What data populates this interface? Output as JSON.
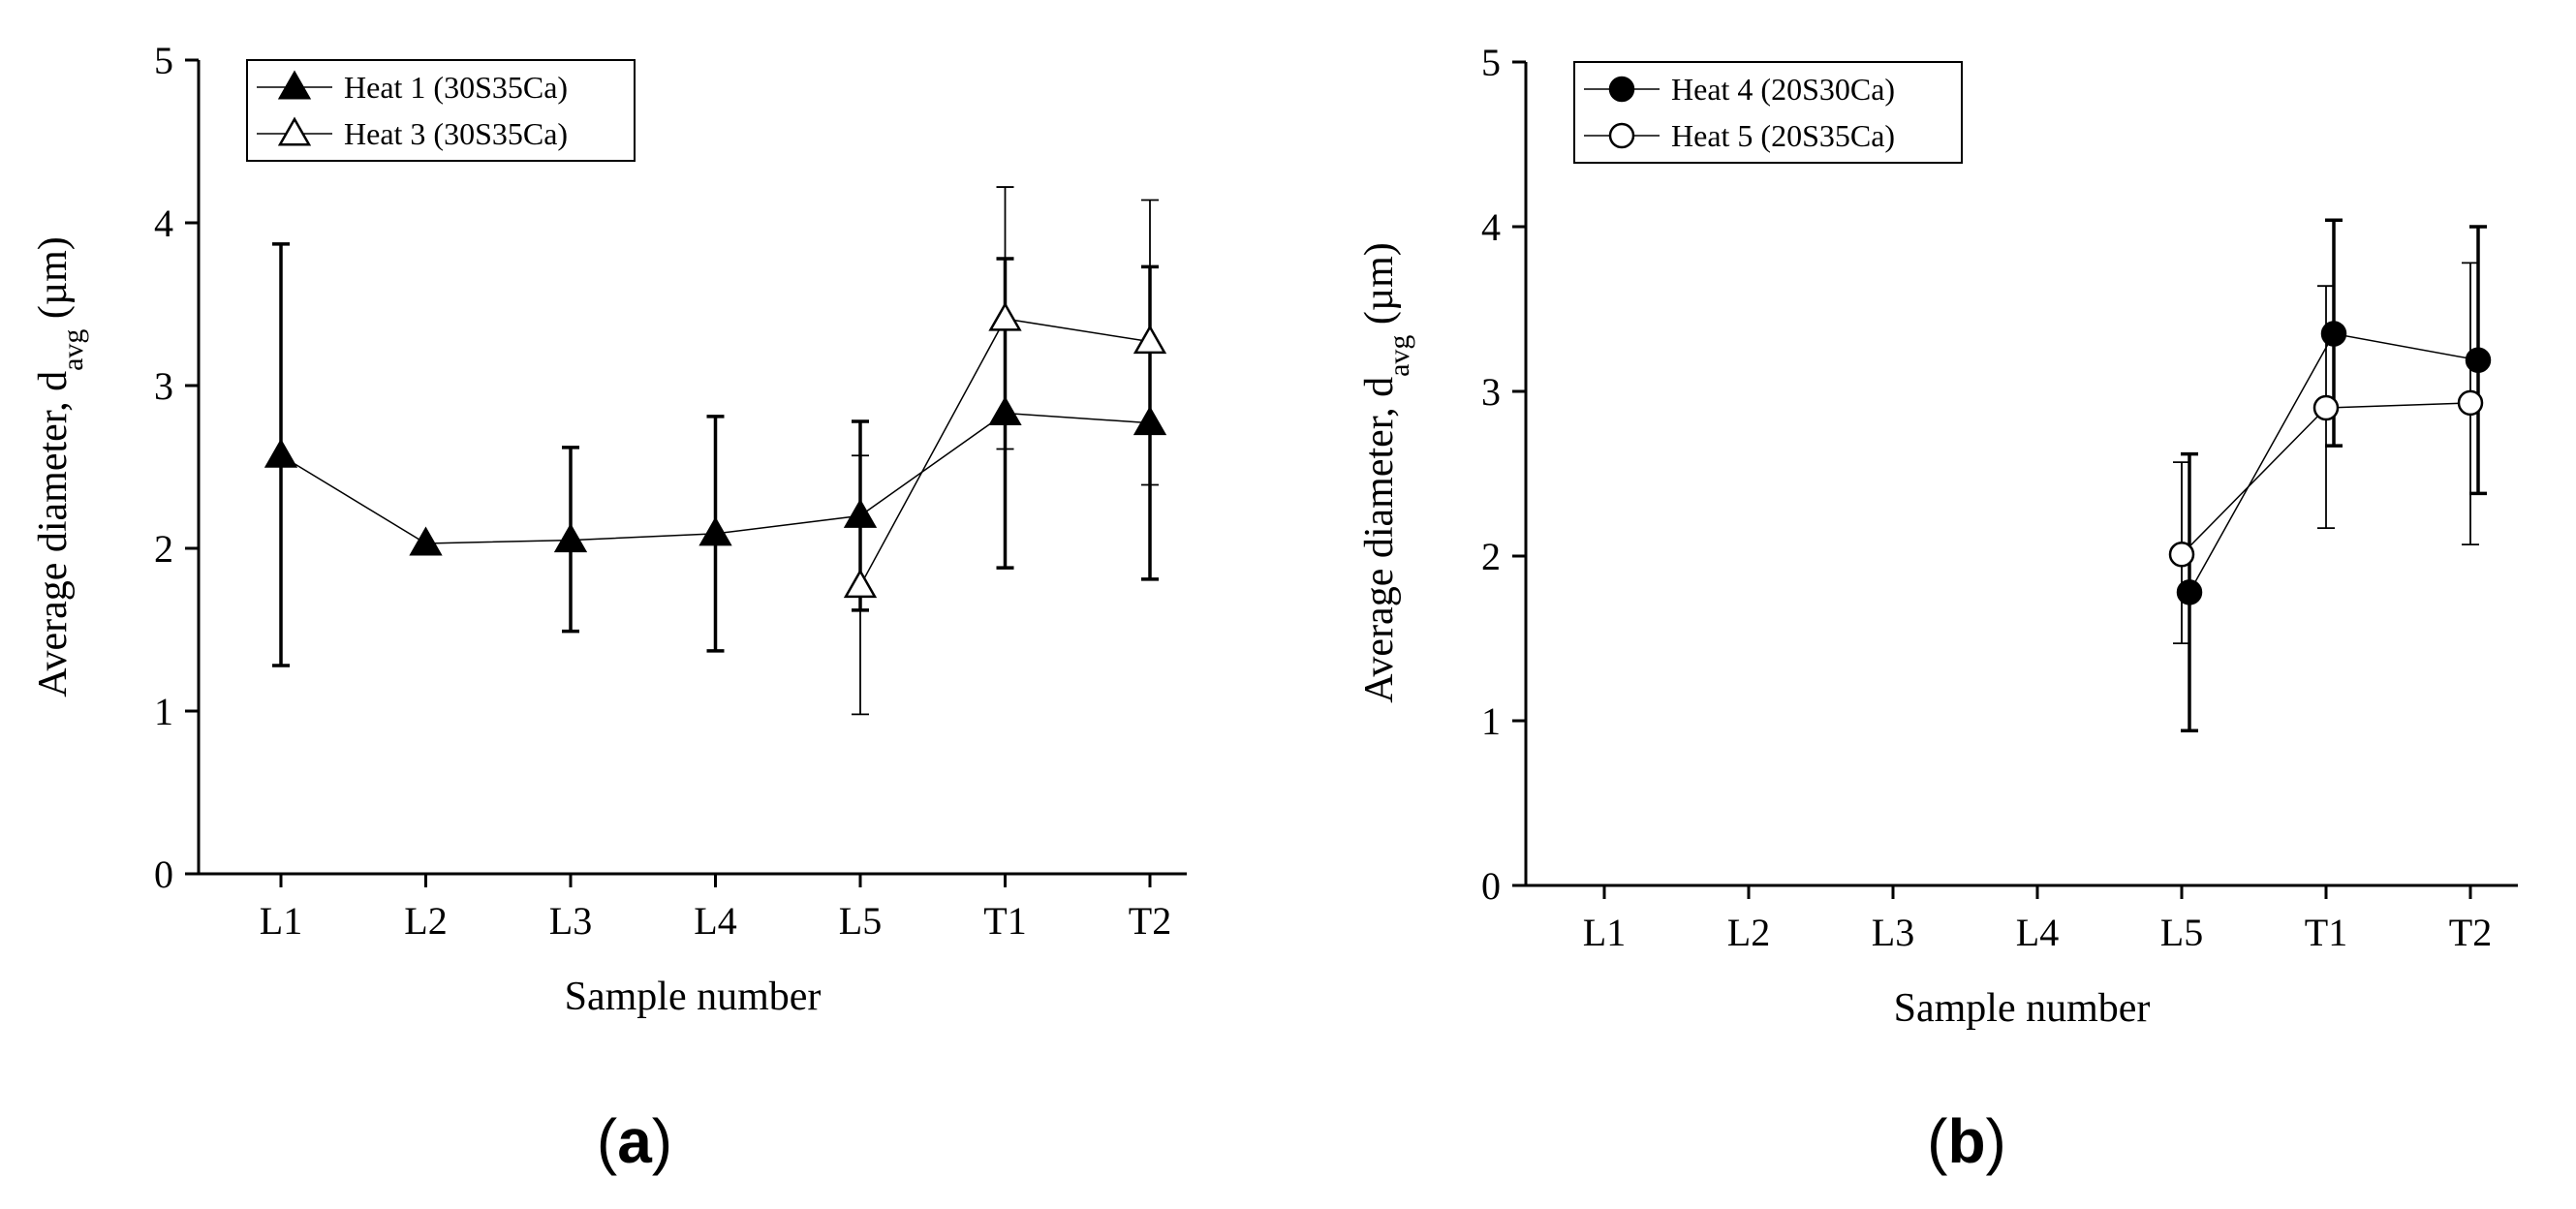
{
  "chart_data": [
    {
      "type": "line",
      "panel": "a",
      "panel_letter": "a",
      "xlabel": "Sample number",
      "ylabel": "Average diameter, d",
      "ylabel_sub": "avg",
      "ylabel_unit": " (µm)",
      "categories": [
        "L1",
        "L2",
        "L3",
        "L4",
        "L5",
        "T1",
        "T2"
      ],
      "ylim": [
        0,
        5
      ],
      "yticks": [
        0,
        1,
        2,
        3,
        4,
        5
      ],
      "legend_position": "top-left",
      "series": [
        {
          "name": "Heat 1 (30S35Ca)",
          "marker": "filled-triangle",
          "x": [
            "L1",
            "L2",
            "L3",
            "L4",
            "L5",
            "T1",
            "T2"
          ],
          "values": [
            2.57,
            2.03,
            2.05,
            2.09,
            2.2,
            2.83,
            2.77
          ],
          "err_low": [
            1.28,
            2.03,
            1.49,
            1.37,
            1.62,
            1.88,
            1.81
          ],
          "err_high": [
            3.87,
            2.03,
            2.62,
            2.81,
            2.78,
            3.78,
            3.73
          ]
        },
        {
          "name": "Heat 3 (30S35Ca)",
          "marker": "open-triangle",
          "x": [
            "L5",
            "T1",
            "T2"
          ],
          "values": [
            1.77,
            3.41,
            3.27
          ],
          "err_low": [
            0.98,
            2.61,
            2.39
          ],
          "err_high": [
            2.57,
            4.22,
            4.14
          ]
        }
      ]
    },
    {
      "type": "line",
      "panel": "b",
      "panel_letter": "b",
      "xlabel": "Sample number",
      "ylabel": "Average diameter, d",
      "ylabel_sub": "avg",
      "ylabel_unit": " (µm)",
      "categories": [
        "L1",
        "L2",
        "L3",
        "L4",
        "L5",
        "T1",
        "T2"
      ],
      "ylim": [
        0,
        5
      ],
      "yticks": [
        0,
        1,
        2,
        3,
        4,
        5
      ],
      "legend_position": "top-left",
      "series": [
        {
          "name": "Heat 4 (20S30Ca)",
          "marker": "filled-circle",
          "x": [
            "L5",
            "T1",
            "T2"
          ],
          "values": [
            1.78,
            3.35,
            3.19
          ],
          "err_low": [
            0.94,
            2.67,
            2.38
          ],
          "err_high": [
            2.62,
            4.04,
            4.0
          ]
        },
        {
          "name": "Heat 5 (20S35Ca)",
          "marker": "open-circle",
          "x": [
            "L5",
            "T1",
            "T2"
          ],
          "values": [
            2.01,
            2.9,
            2.93
          ],
          "err_low": [
            1.47,
            2.17,
            2.07
          ],
          "err_high": [
            2.57,
            3.64,
            3.78
          ]
        }
      ]
    }
  ]
}
